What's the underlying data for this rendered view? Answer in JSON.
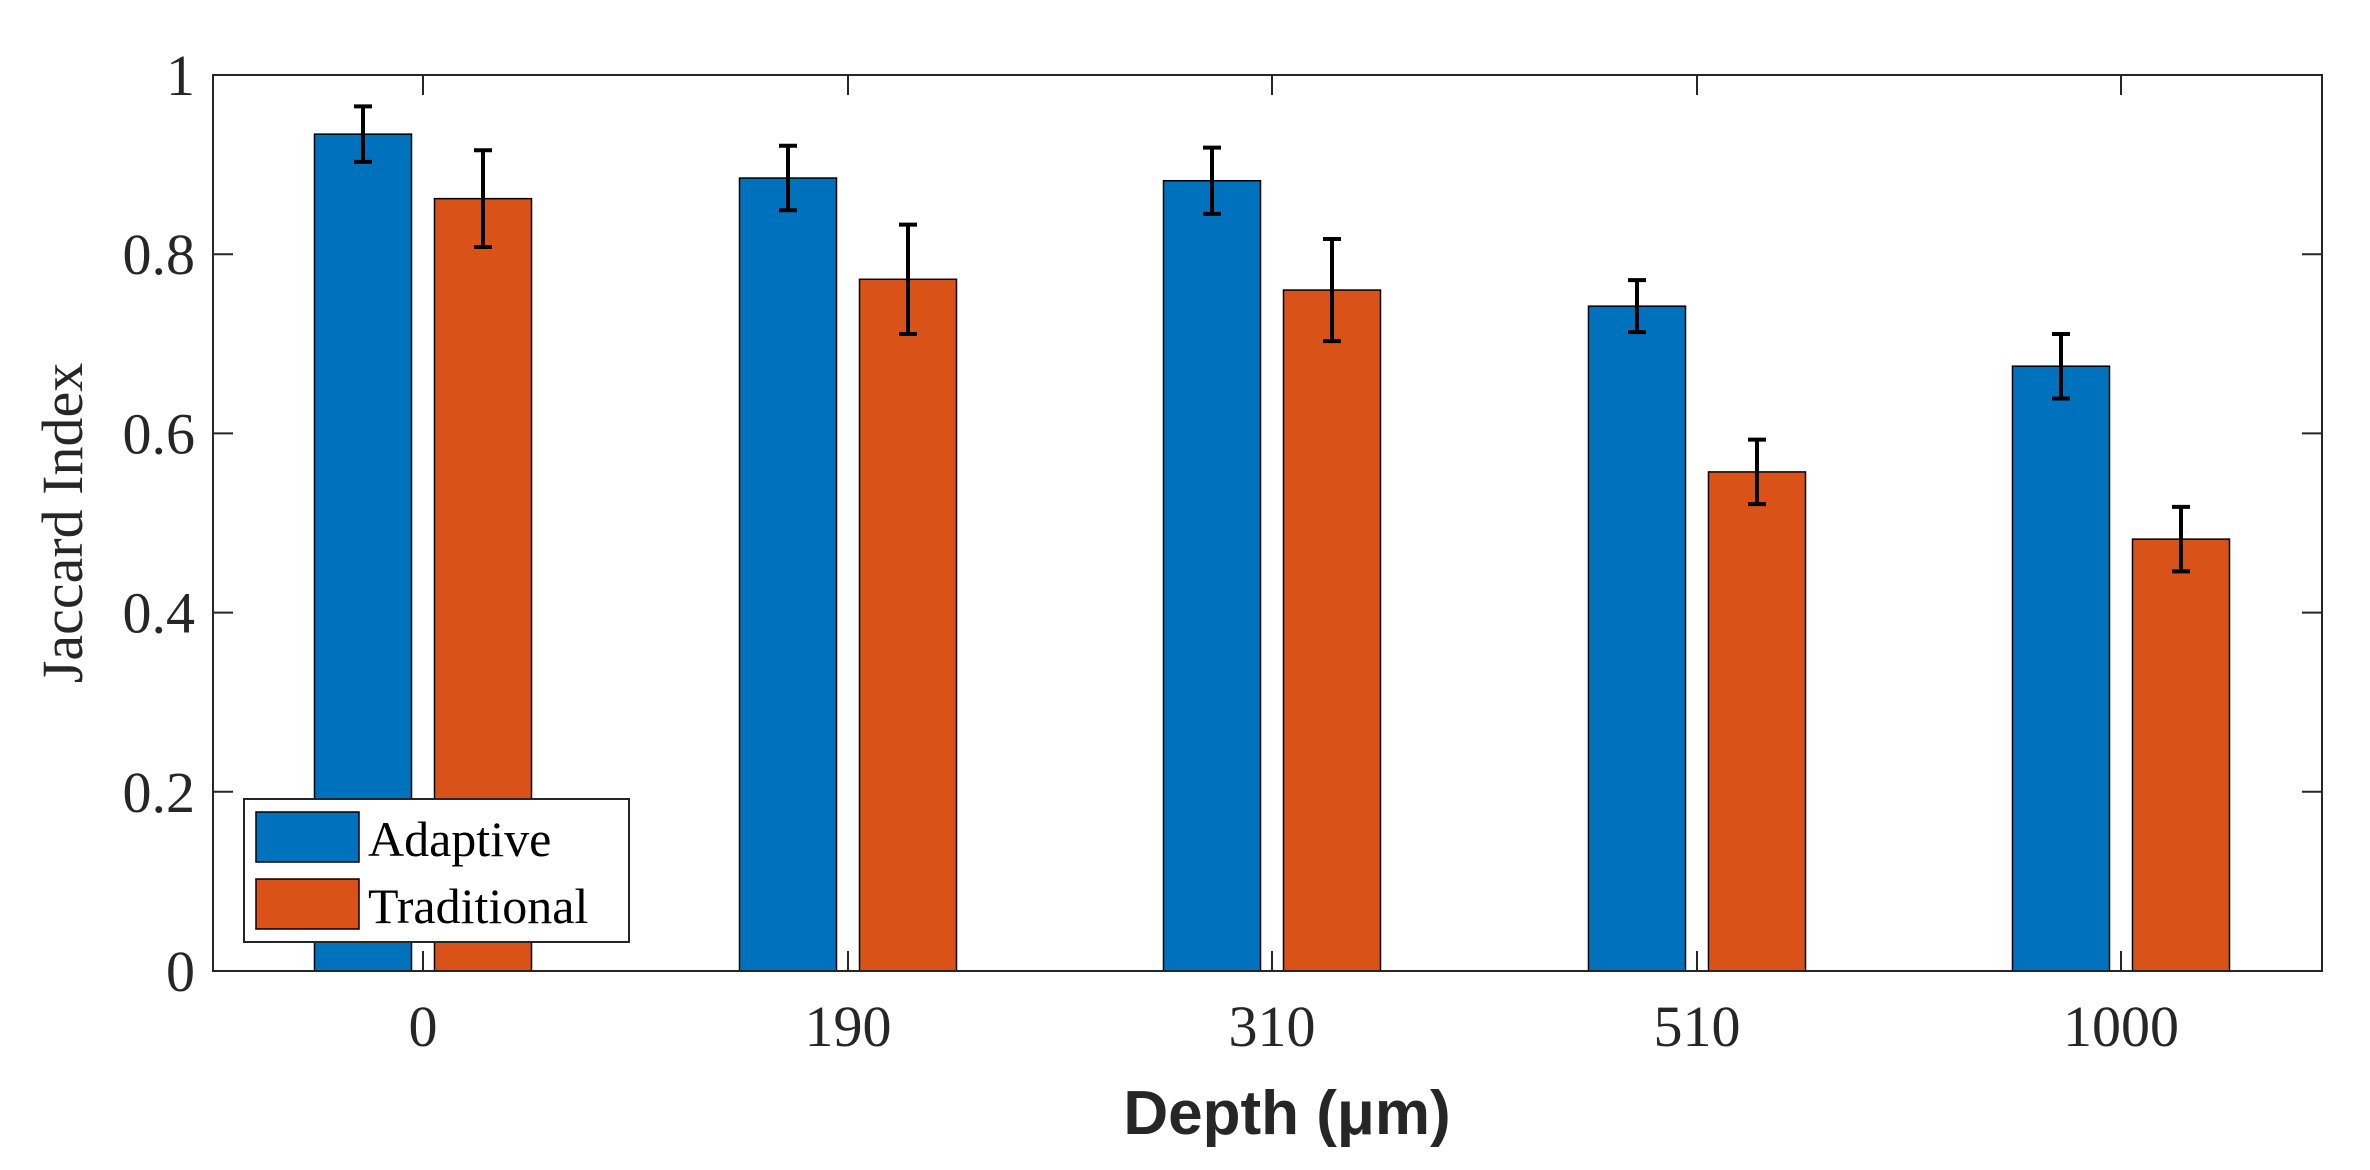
{
  "chart_data": {
    "type": "bar",
    "title": "",
    "xlabel": "Depth (μm)",
    "ylabel": "Jaccard Index",
    "categories": [
      "0",
      "190",
      "310",
      "510",
      "1000"
    ],
    "ylim": [
      0,
      1
    ],
    "yticks": [
      "0",
      "0.2",
      "0.4",
      "0.6",
      "0.8",
      "1"
    ],
    "ytick_values": [
      0,
      0.2,
      0.4,
      0.6,
      0.8,
      1
    ],
    "grid": false,
    "legend_position": "bottom-left",
    "series": [
      {
        "name": "Adaptive",
        "color": "#0072BD",
        "values": [
          0.934,
          0.885,
          0.882,
          0.742,
          0.675
        ],
        "errors": [
          0.031,
          0.036,
          0.037,
          0.029,
          0.036
        ]
      },
      {
        "name": "Traditional",
        "color": "#D95319",
        "values": [
          0.862,
          0.772,
          0.76,
          0.557,
          0.482
        ],
        "errors": [
          0.054,
          0.061,
          0.057,
          0.036,
          0.036
        ]
      }
    ]
  }
}
